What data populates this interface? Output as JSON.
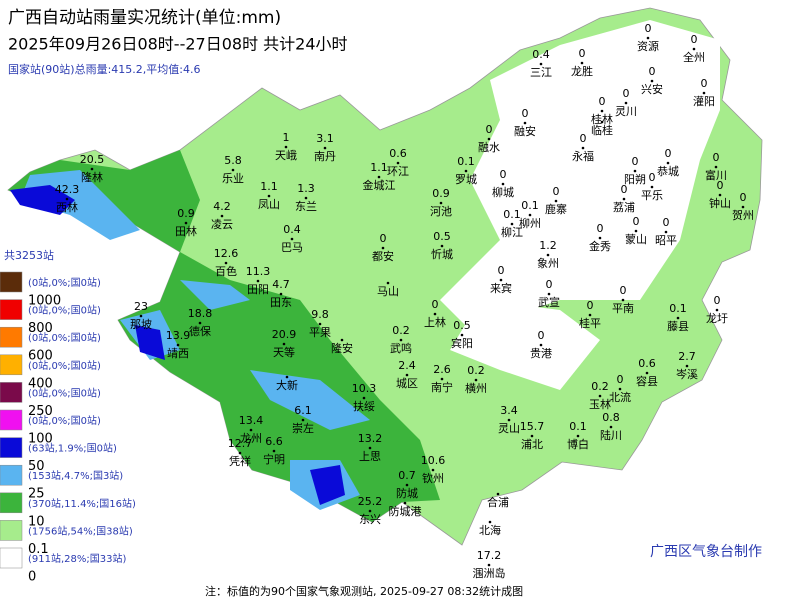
{
  "header": {
    "title": "广西自动站雨量实况统计(单位:mm)",
    "period": "2025年09月26日08时--27日08时  共计24小时",
    "summary": "国家站(90站)总雨量:415.2,平均值:4.6"
  },
  "legend": {
    "total": "共3253站",
    "items": [
      {
        "color": "#5b2c0a",
        "count": "(0站,0%;国0站)",
        "threshold": "1000"
      },
      {
        "color": "#f00000",
        "count": "(0站,0%;国0站)",
        "threshold": "800"
      },
      {
        "color": "#ff7a00",
        "count": "(0站,0%;国0站)",
        "threshold": "600"
      },
      {
        "color": "#ffb000",
        "count": "(0站,0%;国0站)",
        "threshold": "400"
      },
      {
        "color": "#7a0a4a",
        "count": "(0站,0%;国0站)",
        "threshold": "250"
      },
      {
        "color": "#f010f0",
        "count": "(0站,0%;国0站)",
        "threshold": "100"
      },
      {
        "color": "#0a0ad8",
        "count": "(63站,1.9%;国0站)",
        "threshold": "50"
      },
      {
        "color": "#5ab4f0",
        "count": "(153站,4.7%;国3站)",
        "threshold": "25"
      },
      {
        "color": "#3cb43c",
        "count": "(370站,11.4%;国16站)",
        "threshold": "10"
      },
      {
        "color": "#a6ec8c",
        "count": "(1756站,54%;国38站)",
        "threshold": "0.1"
      },
      {
        "color": "#ffffff",
        "count": "(911站,28%;国33站)",
        "threshold": "0"
      }
    ]
  },
  "stations": [
    {
      "name": "三江",
      "value": "0.4"
    },
    {
      "name": "龙胜",
      "value": "0"
    },
    {
      "name": "资源",
      "value": "0"
    },
    {
      "name": "全州",
      "value": "0"
    },
    {
      "name": "兴安",
      "value": "0"
    },
    {
      "name": "灌阳",
      "value": "0"
    },
    {
      "name": "灵川",
      "value": "0"
    },
    {
      "name": "桂林",
      "value": "0"
    },
    {
      "name": "临桂"
    },
    {
      "name": "融安",
      "value": "0"
    },
    {
      "name": "融水",
      "value": "0"
    },
    {
      "name": "永福",
      "value": "0"
    },
    {
      "name": "阳朔",
      "value": "0"
    },
    {
      "name": "恭城",
      "value": "0"
    },
    {
      "name": "富川",
      "value": "0"
    },
    {
      "name": "平乐",
      "value": "0"
    },
    {
      "name": "钟山",
      "value": "0"
    },
    {
      "name": "贺州",
      "value": "0"
    },
    {
      "name": "荔浦",
      "value": "0"
    },
    {
      "name": "蒙山",
      "value": "0"
    },
    {
      "name": "昭平",
      "value": "0"
    },
    {
      "name": "金秀",
      "value": "0"
    },
    {
      "name": "鹿寨",
      "value": "0"
    },
    {
      "name": "罗城",
      "value": "0.1"
    },
    {
      "name": "柳城",
      "value": "0"
    },
    {
      "name": "柳江",
      "value": "0.1"
    },
    {
      "name": "柳州",
      "value": "0.1"
    },
    {
      "name": "象州",
      "value": "1.2"
    },
    {
      "name": "天峨",
      "value": "1"
    },
    {
      "name": "南丹",
      "value": "3.1"
    },
    {
      "name": "环江",
      "value": "0.6"
    },
    {
      "name": "金城江",
      "value": "1.1"
    },
    {
      "name": "东兰",
      "value": "1.3"
    },
    {
      "name": "凤山",
      "value": "1.1"
    },
    {
      "name": "乐业",
      "value": "5.8"
    },
    {
      "name": "凌云",
      "value": "4.2"
    },
    {
      "name": "田林",
      "value": "0.9"
    },
    {
      "name": "巴马",
      "value": "0.4"
    },
    {
      "name": "河池",
      "value": "0.9"
    },
    {
      "name": "忻城",
      "value": "0.5"
    },
    {
      "name": "都安",
      "value": "0"
    },
    {
      "name": "马山"
    },
    {
      "name": "隆林",
      "value": "20.5"
    },
    {
      "name": "西林",
      "value": "42.3"
    },
    {
      "name": "百色",
      "value": "12.6"
    },
    {
      "name": "田阳",
      "value": "11.3"
    },
    {
      "name": "田东",
      "value": "4.7"
    },
    {
      "name": "那坡",
      "value": "23"
    },
    {
      "name": "德保",
      "value": "18.8"
    },
    {
      "name": "靖西",
      "value": "13.9"
    },
    {
      "name": "天等",
      "value": "20.9"
    },
    {
      "name": "平果",
      "value": "9.8"
    },
    {
      "name": "大新"
    },
    {
      "name": "隆安"
    },
    {
      "name": "武鸣",
      "value": "0.2"
    },
    {
      "name": "上林",
      "value": "0"
    },
    {
      "name": "宾阳",
      "value": "0.5"
    },
    {
      "name": "来宾",
      "value": "0"
    },
    {
      "name": "武宣",
      "value": "0"
    },
    {
      "name": "桂平",
      "value": "0"
    },
    {
      "name": "平南",
      "value": "0"
    },
    {
      "name": "贵港",
      "value": "0"
    },
    {
      "name": "藤县",
      "value": "0.1"
    },
    {
      "name": "龙圩",
      "value": "0"
    },
    {
      "name": "岑溪",
      "value": "2.7"
    },
    {
      "name": "容县",
      "value": "0.6"
    },
    {
      "name": "北流",
      "value": "0"
    },
    {
      "name": "玉林",
      "value": "0.2"
    },
    {
      "name": "陆川",
      "value": "0.8"
    },
    {
      "name": "博白",
      "value": "0.1"
    },
    {
      "name": "浦北",
      "value": "15.7"
    },
    {
      "name": "灵山",
      "value": "3.4"
    },
    {
      "name": "横州",
      "value": "0.2"
    },
    {
      "name": "南宁",
      "value": "2.6"
    },
    {
      "name": "城区",
      "value": "2.4"
    },
    {
      "name": "扶绥",
      "value": "10.3"
    },
    {
      "name": "崇左",
      "value": "6.1"
    },
    {
      "name": "龙州",
      "value": "13.4"
    },
    {
      "name": "凭祥",
      "value": "12.7"
    },
    {
      "name": "宁明",
      "value": "6.6"
    },
    {
      "name": "上思",
      "value": "13.2"
    },
    {
      "name": "钦州",
      "value": "10.6"
    },
    {
      "name": "防城",
      "value": "0.7"
    },
    {
      "name": "防城港"
    },
    {
      "name": "东兴",
      "value": "25.2"
    },
    {
      "name": "合浦"
    },
    {
      "name": "北海"
    },
    {
      "name": "涠洲岛",
      "value": "17.2"
    }
  ],
  "credit": "广西区气象台制作",
  "footer": "注：标值的为90个国家气象观测站, 2025-09-27 08:32统计成图"
}
